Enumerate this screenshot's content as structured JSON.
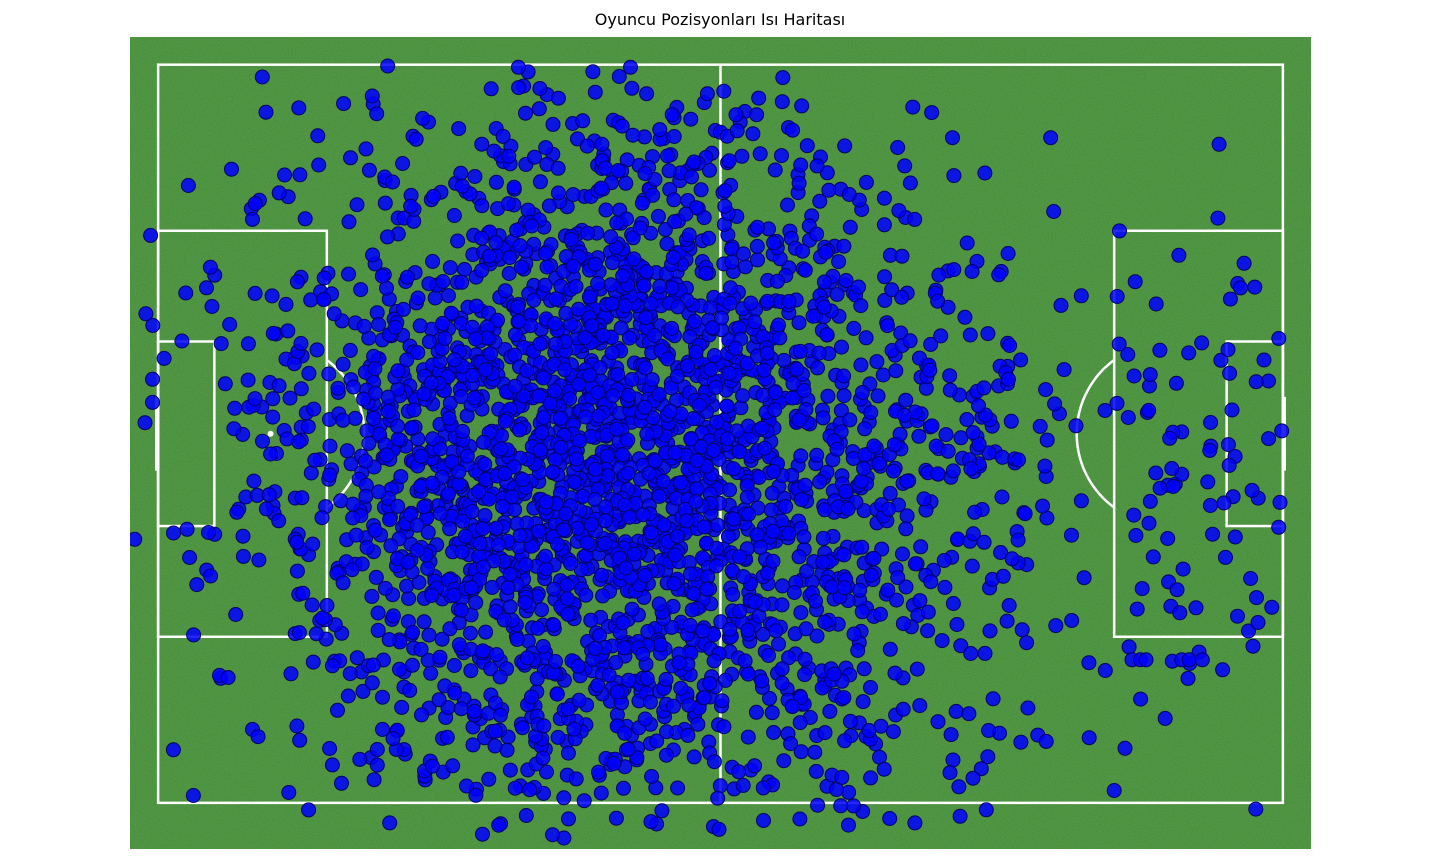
{
  "chart_data": {
    "type": "scatter",
    "title": "Oyuncu Pozisyonları Isı Haritası",
    "xlim": [
      -3,
      123
    ],
    "ylim": [
      -3,
      85
    ],
    "pitch": {
      "length": 120,
      "width": 80
    },
    "grid": false,
    "legend": null,
    "colors": {
      "pitch": "#3f8a33",
      "lines": "#ffffff",
      "marker_fill": "#0000ff",
      "marker_edge": "#000066"
    },
    "point_cloud": {
      "note_free": true,
      "count": 3200,
      "clusters": [
        {
          "cx": 50,
          "cy": 42,
          "sx": 13,
          "sy": 20,
          "weight": 0.55
        },
        {
          "cx": 32,
          "cy": 44,
          "sx": 14,
          "sy": 19,
          "weight": 0.25
        },
        {
          "cx": 75,
          "cy": 44,
          "sx": 13,
          "sy": 18,
          "weight": 0.17
        },
        {
          "cx": 110,
          "cy": 45,
          "sx": 8,
          "sy": 14,
          "weight": 0.03
        }
      ],
      "x_range": [
        -3,
        120
      ],
      "y_range": [
        0,
        80
      ]
    },
    "highlight_points": [
      {
        "x": 103.9,
        "y": 64.5
      },
      {
        "x": 104.8,
        "y": 64.5
      },
      {
        "x": 105.4,
        "y": 64.5
      },
      {
        "x": 109.2,
        "y": 64.5
      },
      {
        "x": 110.0,
        "y": 64.5
      },
      {
        "x": 111.4,
        "y": 64.5
      },
      {
        "x": 108.7,
        "y": 56.9
      },
      {
        "x": 112.2,
        "y": 41.8
      },
      {
        "x": 109.0,
        "y": 59.4
      },
      {
        "x": 106.9,
        "y": 45.9
      },
      {
        "x": 114.4,
        "y": 25.4
      },
      {
        "x": 117.0,
        "y": 24.1
      },
      {
        "x": 84.6,
        "y": 72.6
      },
      {
        "x": 83.2,
        "y": 71.2
      },
      {
        "x": 81.0,
        "y": 65.5
      },
      {
        "x": -1.4,
        "y": 38.8
      },
      {
        "x": -0.6,
        "y": 34.1
      },
      {
        "x": -1.3,
        "y": 27.0
      },
      {
        "x": -0.8,
        "y": 18.5
      }
    ]
  }
}
